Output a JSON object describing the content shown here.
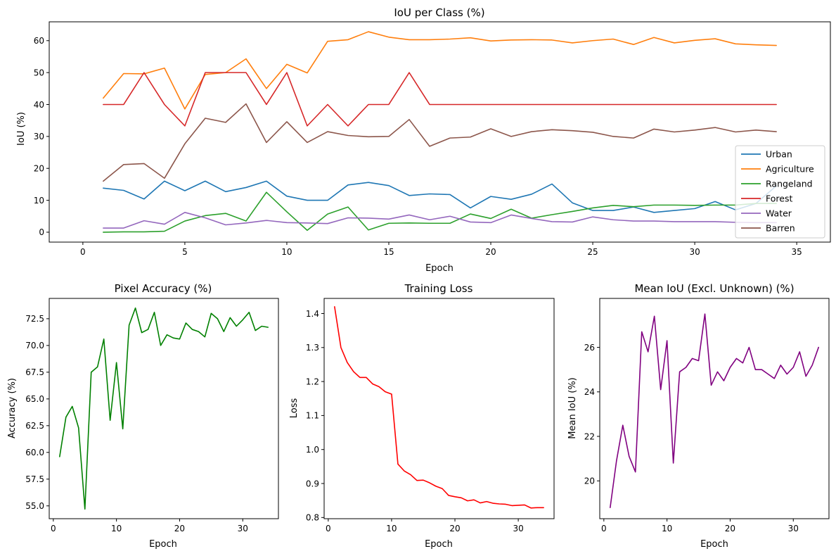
{
  "figure": {
    "background": "#ffffff"
  },
  "chart_data": [
    {
      "id": "iou",
      "type": "line",
      "title": "IoU per Class (%)",
      "xlabel": "Epoch",
      "ylabel": "IoU (%)",
      "xlim": [
        -1.65,
        36.65
      ],
      "ylim": [
        -3.1,
        65.9
      ],
      "xticks": [
        0,
        5,
        10,
        15,
        20,
        25,
        30,
        35
      ],
      "yticks": [
        0,
        10,
        20,
        30,
        40,
        50,
        60
      ],
      "ytick_labels": [
        "0",
        "10",
        "20",
        "30",
        "40",
        "50",
        "60"
      ],
      "legend": "right",
      "x": [
        1,
        2,
        3,
        4,
        5,
        6,
        7,
        8,
        9,
        10,
        11,
        12,
        13,
        14,
        15,
        16,
        17,
        18,
        19,
        20,
        21,
        22,
        23,
        24,
        25,
        26,
        27,
        28,
        29,
        30,
        31,
        32,
        33,
        34
      ],
      "series": [
        {
          "name": "Urban",
          "color": "#1f77b4",
          "values": [
            13.8,
            13.1,
            10.4,
            16.0,
            13.0,
            16.0,
            12.7,
            14.0,
            16.0,
            11.3,
            10.0,
            10.0,
            14.8,
            15.6,
            14.6,
            11.5,
            12.0,
            11.8,
            7.6,
            11.2,
            10.3,
            11.9,
            15.1,
            9.2,
            6.8,
            6.8,
            7.9,
            6.2,
            6.8,
            7.4,
            9.6,
            7.0,
            9.0,
            14.5
          ]
        },
        {
          "name": "Agriculture",
          "color": "#ff7f0e",
          "values": [
            42.0,
            49.7,
            49.6,
            51.4,
            38.6,
            49.4,
            50.0,
            54.3,
            45.0,
            52.6,
            49.9,
            59.8,
            60.3,
            62.8,
            61.1,
            60.3,
            60.3,
            60.5,
            60.9,
            59.9,
            60.2,
            60.3,
            60.2,
            59.3,
            60.0,
            60.5,
            58.8,
            61.0,
            59.3,
            60.1,
            60.6,
            59.0,
            58.7,
            58.5
          ]
        },
        {
          "name": "Rangeland",
          "color": "#2ca02c",
          "values": [
            0.0,
            0.1,
            0.1,
            0.3,
            3.5,
            5.2,
            5.9,
            3.5,
            12.5,
            6.4,
            0.6,
            5.7,
            7.9,
            0.7,
            2.8,
            2.9,
            2.8,
            2.8,
            5.7,
            4.3,
            7.2,
            4.4,
            5.5,
            6.5,
            7.6,
            8.4,
            8.0,
            8.5,
            8.5,
            8.4,
            8.5,
            8.5,
            9.0,
            9.0
          ]
        },
        {
          "name": "Forest",
          "color": "#d62728",
          "values": [
            40.0,
            40.0,
            50.0,
            40.0,
            33.3,
            50.0,
            50.0,
            50.0,
            40.0,
            50.0,
            33.3,
            40.0,
            33.3,
            40.0,
            40.0,
            50.0,
            40.0,
            40.0,
            40.0,
            40.0,
            40.0,
            40.0,
            40.0,
            40.0,
            40.0,
            40.0,
            40.0,
            40.0,
            40.0,
            40.0,
            40.0,
            40.0,
            40.0,
            40.0
          ]
        },
        {
          "name": "Water",
          "color": "#9467bd",
          "values": [
            1.3,
            1.3,
            3.6,
            2.5,
            6.2,
            4.5,
            2.3,
            2.9,
            3.7,
            3.0,
            2.9,
            2.7,
            4.5,
            4.4,
            4.1,
            5.4,
            3.9,
            5.0,
            3.2,
            3.0,
            5.4,
            4.3,
            3.3,
            3.2,
            4.8,
            3.9,
            3.5,
            3.5,
            3.3,
            3.3,
            3.3,
            3.1,
            3.0,
            3.0
          ]
        },
        {
          "name": "Barren",
          "color": "#8c564b",
          "values": [
            16.0,
            21.2,
            21.5,
            16.9,
            27.7,
            35.7,
            34.4,
            40.2,
            28.1,
            34.6,
            28.1,
            31.5,
            30.3,
            29.9,
            30.0,
            35.3,
            26.9,
            29.5,
            29.8,
            32.4,
            30.0,
            31.5,
            32.1,
            31.8,
            31.3,
            30.0,
            29.5,
            32.3,
            31.4,
            32.0,
            32.8,
            31.4,
            32.0,
            31.5
          ]
        }
      ]
    },
    {
      "id": "acc",
      "type": "line",
      "title": "Pixel Accuracy (%)",
      "xlabel": "Epoch",
      "ylabel": "Accuracy (%)",
      "xlim": [
        -0.65,
        35.65
      ],
      "ylim": [
        53.8,
        74.4
      ],
      "xticks": [
        0,
        10,
        20,
        30
      ],
      "yticks": [
        55.0,
        57.5,
        60.0,
        62.5,
        65.0,
        67.5,
        70.0,
        72.5
      ],
      "ytick_labels": [
        "55.0",
        "57.5",
        "60.0",
        "62.5",
        "65.0",
        "67.5",
        "70.0",
        "72.5"
      ],
      "x": [
        1,
        2,
        3,
        4,
        5,
        6,
        7,
        8,
        9,
        10,
        11,
        12,
        13,
        14,
        15,
        16,
        17,
        18,
        19,
        20,
        21,
        22,
        23,
        24,
        25,
        26,
        27,
        28,
        29,
        30,
        31,
        32,
        33,
        34
      ],
      "series": [
        {
          "name": "Pixel Accuracy",
          "color": "#008000",
          "values": [
            59.6,
            63.3,
            64.3,
            62.3,
            54.7,
            67.5,
            68.0,
            70.6,
            63.0,
            68.4,
            62.2,
            71.9,
            73.5,
            71.2,
            71.5,
            73.1,
            70.0,
            71.0,
            70.7,
            70.6,
            72.1,
            71.5,
            71.3,
            70.8,
            73.0,
            72.5,
            71.3,
            72.6,
            71.8,
            72.4,
            73.1,
            71.4,
            71.8,
            71.7
          ]
        }
      ]
    },
    {
      "id": "loss",
      "type": "line",
      "title": "Training Loss",
      "xlabel": "Epoch",
      "ylabel": "Loss",
      "xlim": [
        -0.65,
        35.65
      ],
      "ylim": [
        0.7965,
        1.4445
      ],
      "xticks": [
        0,
        10,
        20,
        30
      ],
      "yticks": [
        0.8,
        0.9,
        1.0,
        1.1,
        1.2,
        1.3,
        1.4
      ],
      "ytick_labels": [
        "0.8",
        "0.9",
        "1.0",
        "1.1",
        "1.2",
        "1.3",
        "1.4"
      ],
      "x": [
        1,
        2,
        3,
        4,
        5,
        6,
        7,
        8,
        9,
        10,
        11,
        12,
        13,
        14,
        15,
        16,
        17,
        18,
        19,
        20,
        21,
        22,
        23,
        24,
        25,
        26,
        27,
        28,
        29,
        30,
        31,
        32,
        33,
        34
      ],
      "series": [
        {
          "name": "Training Loss",
          "color": "#ff0000",
          "values": [
            1.42,
            1.3,
            1.256,
            1.229,
            1.212,
            1.212,
            1.193,
            1.185,
            1.17,
            1.163,
            0.957,
            0.937,
            0.926,
            0.909,
            0.91,
            0.902,
            0.892,
            0.885,
            0.865,
            0.861,
            0.858,
            0.849,
            0.852,
            0.843,
            0.847,
            0.842,
            0.84,
            0.839,
            0.835,
            0.836,
            0.837,
            0.828,
            0.829,
            0.829
          ]
        }
      ]
    },
    {
      "id": "miou",
      "type": "line",
      "title": "Mean IoU (Excl. Unknown) (%)",
      "xlabel": "Epoch",
      "ylabel": "Mean IoU (%)",
      "xlim": [
        -0.65,
        35.65
      ],
      "ylim": [
        18.3,
        28.2
      ],
      "xticks": [
        0,
        10,
        20,
        30
      ],
      "yticks": [
        20,
        22,
        24,
        26
      ],
      "ytick_labels": [
        "20",
        "22",
        "24",
        "26"
      ],
      "x": [
        1,
        2,
        3,
        4,
        5,
        6,
        7,
        8,
        9,
        10,
        11,
        12,
        13,
        14,
        15,
        16,
        17,
        18,
        19,
        20,
        21,
        22,
        23,
        24,
        25,
        26,
        27,
        28,
        29,
        30,
        31,
        32,
        33,
        34
      ],
      "series": [
        {
          "name": "Mean IoU",
          "color": "#800080",
          "values": [
            18.8,
            20.9,
            22.5,
            21.1,
            20.4,
            26.7,
            25.8,
            27.4,
            24.1,
            26.3,
            20.8,
            24.9,
            25.1,
            25.5,
            25.4,
            27.5,
            24.3,
            24.9,
            24.5,
            25.1,
            25.5,
            25.3,
            26.0,
            25.0,
            25.0,
            24.8,
            24.6,
            25.2,
            24.8,
            25.1,
            25.8,
            24.7,
            25.2,
            26.0
          ]
        }
      ]
    }
  ]
}
